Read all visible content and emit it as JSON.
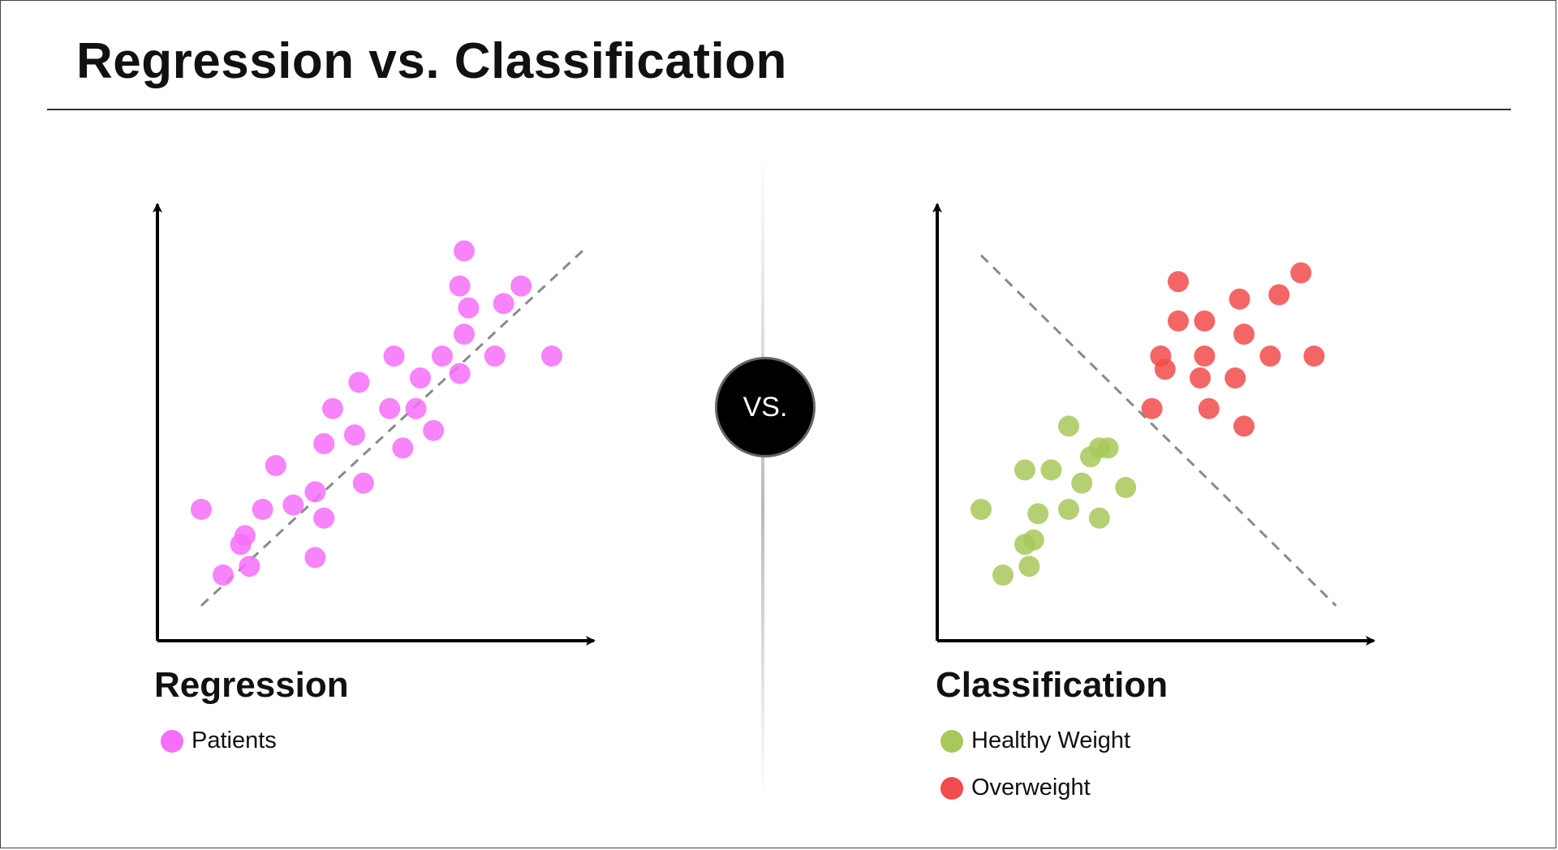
{
  "title": "Regression vs. Classification",
  "vs_label": "VS.",
  "regression": {
    "heading": "Regression",
    "legend": [
      {
        "label": "Patients",
        "color": "#f66ef9"
      }
    ],
    "trend_line_color": "#8a8a8a"
  },
  "classification": {
    "heading": "Classification",
    "legend": [
      {
        "label": "Healthy Weight",
        "color": "#a8c85a"
      },
      {
        "label": "Overweight",
        "color": "#f24b4b"
      }
    ],
    "boundary_line_color": "#8a8a8a"
  },
  "chart_data": [
    {
      "type": "scatter",
      "title": "Regression",
      "xlabel": "",
      "ylabel": "",
      "xlim": [
        0,
        10
      ],
      "ylim": [
        0,
        10
      ],
      "grid": false,
      "trend_line": {
        "x": [
          1,
          9.7
        ],
        "y": [
          0.8,
          8.9
        ]
      },
      "series": [
        {
          "name": "Patients",
          "color": "#f66ef9",
          "points": [
            [
              1.0,
              3.0
            ],
            [
              2.0,
              2.4
            ],
            [
              1.9,
              2.2
            ],
            [
              2.1,
              1.7
            ],
            [
              1.5,
              1.5
            ],
            [
              2.4,
              3.0
            ],
            [
              2.7,
              4.0
            ],
            [
              3.1,
              3.1
            ],
            [
              3.6,
              3.4
            ],
            [
              3.8,
              2.8
            ],
            [
              3.6,
              1.9
            ],
            [
              3.8,
              4.5
            ],
            [
              4.0,
              5.3
            ],
            [
              4.7,
              3.6
            ],
            [
              4.5,
              4.7
            ],
            [
              4.6,
              5.9
            ],
            [
              5.3,
              5.3
            ],
            [
              5.4,
              6.5
            ],
            [
              5.6,
              4.4
            ],
            [
              5.9,
              5.3
            ],
            [
              6.0,
              6.0
            ],
            [
              6.5,
              6.5
            ],
            [
              6.3,
              4.8
            ],
            [
              6.9,
              6.1
            ],
            [
              7.0,
              7.0
            ],
            [
              7.1,
              7.6
            ],
            [
              6.9,
              8.1
            ],
            [
              7.7,
              6.5
            ],
            [
              7.9,
              7.7
            ],
            [
              8.3,
              8.1
            ],
            [
              7.0,
              8.9
            ],
            [
              9.0,
              6.5
            ]
          ]
        }
      ]
    },
    {
      "type": "scatter",
      "title": "Classification",
      "xlabel": "",
      "ylabel": "",
      "xlim": [
        0,
        10
      ],
      "ylim": [
        0,
        10
      ],
      "grid": false,
      "decision_boundary": {
        "x": [
          1.0,
          9.1
        ],
        "y": [
          8.8,
          0.8
        ]
      },
      "series": [
        {
          "name": "Healthy Weight",
          "color": "#a8c85a",
          "points": [
            [
              1.0,
              3.0
            ],
            [
              2.0,
              3.9
            ],
            [
              2.6,
              3.9
            ],
            [
              3.0,
              4.9
            ],
            [
              3.5,
              4.2
            ],
            [
              3.7,
              4.4
            ],
            [
              3.9,
              4.4
            ],
            [
              3.3,
              3.6
            ],
            [
              4.3,
              3.5
            ],
            [
              2.3,
              2.9
            ],
            [
              3.0,
              3.0
            ],
            [
              3.7,
              2.8
            ],
            [
              2.2,
              2.3
            ],
            [
              2.0,
              2.2
            ],
            [
              1.5,
              1.5
            ],
            [
              2.1,
              1.7
            ]
          ]
        },
        {
          "name": "Overweight",
          "color": "#f24b4b",
          "points": [
            [
              5.5,
              8.2
            ],
            [
              5.5,
              7.3
            ],
            [
              6.1,
              7.3
            ],
            [
              6.9,
              7.8
            ],
            [
              7.8,
              7.9
            ],
            [
              8.3,
              8.4
            ],
            [
              7.0,
              7.0
            ],
            [
              7.6,
              6.5
            ],
            [
              8.6,
              6.5
            ],
            [
              6.1,
              6.5
            ],
            [
              5.1,
              6.5
            ],
            [
              5.2,
              6.2
            ],
            [
              6.0,
              6.0
            ],
            [
              6.8,
              6.0
            ],
            [
              4.9,
              5.3
            ],
            [
              6.2,
              5.3
            ],
            [
              7.0,
              4.9
            ]
          ]
        }
      ]
    }
  ]
}
